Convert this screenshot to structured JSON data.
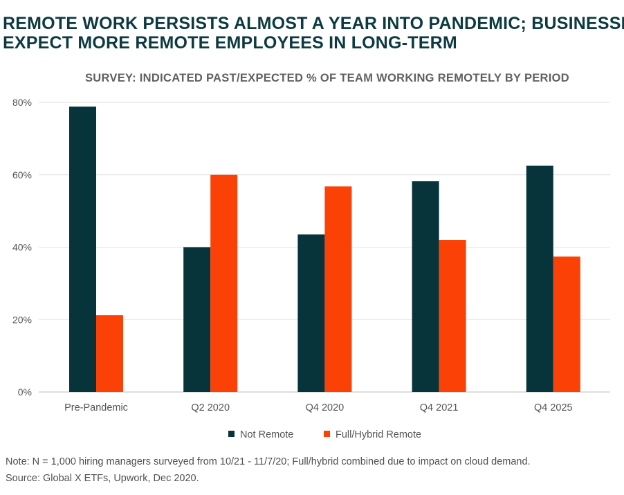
{
  "title_lines": [
    "REMOTE WORK PERSISTS ALMOST A YEAR INTO PANDEMIC; BUSINESSES",
    "EXPECT MORE REMOTE EMPLOYEES IN LONG-TERM"
  ],
  "footnotes": [
    "Note: N = 1,000 hiring managers surveyed from 10/21 - 11/7/20; Full/hybrid combined due to impact on cloud demand.",
    "Source: Global X ETFs, Upwork, Dec 2020."
  ],
  "chart_data": {
    "type": "bar",
    "title": "SURVEY: INDICATED PAST/EXPECTED % OF TEAM WORKING REMOTELY BY PERIOD",
    "categories": [
      "Pre-Pandemic",
      "Q2 2020",
      "Q4 2020",
      "Q4 2021",
      "Q4 2025"
    ],
    "series": [
      {
        "name": "Not Remote",
        "color": "#06343a",
        "values": [
          78.8,
          40.0,
          43.5,
          58.2,
          62.5
        ]
      },
      {
        "name": "Full/Hybrid Remote",
        "color": "#fb4106",
        "values": [
          21.2,
          60.0,
          56.8,
          42.0,
          37.4
        ]
      }
    ],
    "ylim": [
      0,
      80
    ],
    "yticks": [
      0,
      20,
      40,
      60,
      80
    ],
    "ytick_labels": [
      "0%",
      "20%",
      "40%",
      "60%",
      "80%"
    ],
    "grid": true,
    "legend_position": "bottom"
  }
}
